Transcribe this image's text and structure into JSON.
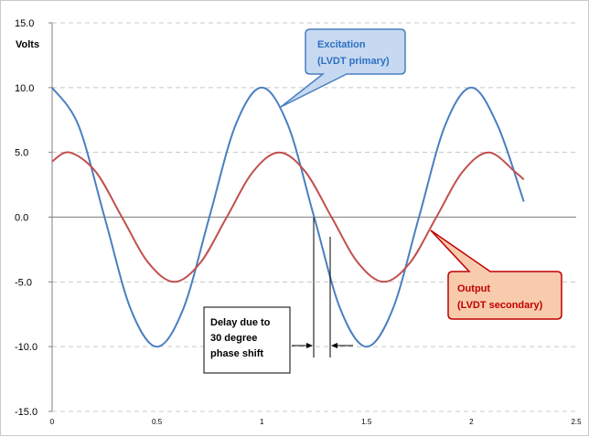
{
  "chart_data": {
    "type": "line",
    "ylabel": "Volts",
    "xlim": [
      0,
      2.5
    ],
    "ylim": [
      -15,
      15
    ],
    "x_ticks": [
      "0",
      "0.5",
      "1",
      "1.5",
      "2",
      "2.5"
    ],
    "y_ticks": [
      "15.0",
      "10.0",
      "5.0",
      "0.0",
      "-5.0",
      "-10.0",
      "-15.0"
    ],
    "grid": "horizontal dashed",
    "series": [
      {
        "name": "Excitation (LVDT primary)",
        "color": "#4a7fc1",
        "x": [
          0,
          0.125,
          0.25,
          0.375,
          0.5,
          0.625,
          0.75,
          0.875,
          1.0,
          1.125,
          1.25,
          1.375,
          1.5,
          1.625,
          1.75,
          1.875,
          2.0,
          2.125,
          2.25
        ],
        "y": [
          10.0,
          7.1,
          0.0,
          -7.1,
          -10.0,
          -7.1,
          0.0,
          7.1,
          10.0,
          7.1,
          0.0,
          -7.1,
          -10.0,
          -7.1,
          0.0,
          7.1,
          10.0,
          7.1,
          1.2
        ]
      },
      {
        "name": "Output (LVDT secondary)",
        "color": "#c0504d",
        "x": [
          0,
          0.083,
          0.208,
          0.333,
          0.458,
          0.583,
          0.708,
          0.833,
          0.958,
          1.083,
          1.208,
          1.333,
          1.458,
          1.583,
          1.708,
          1.833,
          1.958,
          2.083,
          2.208,
          2.25
        ],
        "y": [
          4.3,
          5.0,
          3.5,
          0.0,
          -3.5,
          -5.0,
          -3.5,
          0.0,
          3.5,
          5.0,
          3.5,
          0.0,
          -3.5,
          -5.0,
          -3.5,
          0.0,
          3.5,
          5.0,
          3.5,
          2.9
        ]
      }
    ],
    "annotations": {
      "excitation_callout": {
        "line1": "Excitation",
        "line2": "(LVDT primary)"
      },
      "output_callout": {
        "line1": "Output",
        "line2": "(LVDT secondary)"
      },
      "delay_note": {
        "line1": "Delay due to",
        "line2": "30 degree",
        "line3": "phase shift"
      }
    }
  },
  "colors": {
    "axis": "#808080",
    "grid": "#c8c8c8",
    "callout_blue_fill": "#c6d9f1",
    "callout_blue_stroke": "#4a7fc1",
    "callout_red_fill": "#f8cbad",
    "callout_red_stroke": "#c00000"
  }
}
